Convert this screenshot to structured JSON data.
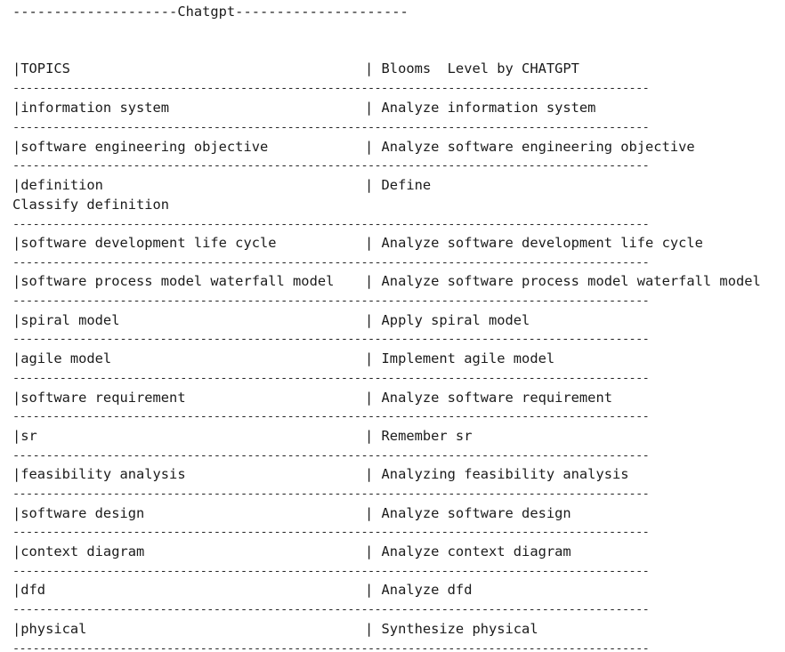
{
  "title": "--------------------Chatgpt---------------------",
  "separator": "-----------------------------------------------------------------------------------------------",
  "header": {
    "left": "|TOPICS",
    "right": "| Blooms  Level by CHATGPT"
  },
  "rows": [
    {
      "left": "|information system",
      "right": "| Analyze information system"
    },
    {
      "left": "|software engineering objective",
      "right": "| Analyze software engineering objective"
    },
    {
      "left": "|definition",
      "right": "| Define",
      "extra": "Classify definition"
    },
    {
      "left": "|software development life cycle",
      "right": "| Analyze software development life cycle"
    },
    {
      "left": "|software process model waterfall model",
      "right": "| Analyze software process model waterfall model"
    },
    {
      "left": "|spiral model",
      "right": "| Apply spiral model"
    },
    {
      "left": "|agile model",
      "right": "| Implement agile model"
    },
    {
      "left": "|software requirement",
      "right": "| Analyze software requirement"
    },
    {
      "left": "|sr",
      "right": "| Remember sr"
    },
    {
      "left": "|feasibility analysis",
      "right": "| Analyzing feasibility analysis"
    },
    {
      "left": "|software design",
      "right": "| Analyze software design"
    },
    {
      "left": "|context diagram",
      "right": "| Analyze context diagram"
    },
    {
      "left": "|dfd",
      "right": "| Analyze dfd"
    },
    {
      "left": "|physical",
      "right": "| Synthesize physical"
    }
  ]
}
